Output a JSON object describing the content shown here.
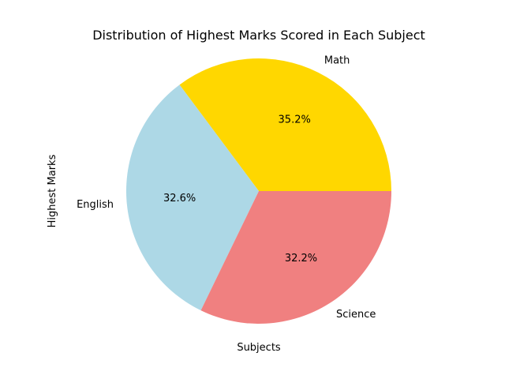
{
  "chart_data": {
    "type": "pie",
    "title": "Distribution of Highest Marks Scored in Each Subject",
    "xlabel": "Subjects",
    "ylabel": "Highest Marks",
    "categories": [
      "Math",
      "English",
      "Science"
    ],
    "values": [
      35.2,
      32.6,
      32.2
    ],
    "value_labels": [
      "35.2%",
      "32.6%",
      "32.2%"
    ],
    "colors": [
      "#ffd700",
      "#add8e6",
      "#f08080"
    ],
    "start_angle_deg": 0,
    "direction": "counterclockwise",
    "legend": "none"
  }
}
